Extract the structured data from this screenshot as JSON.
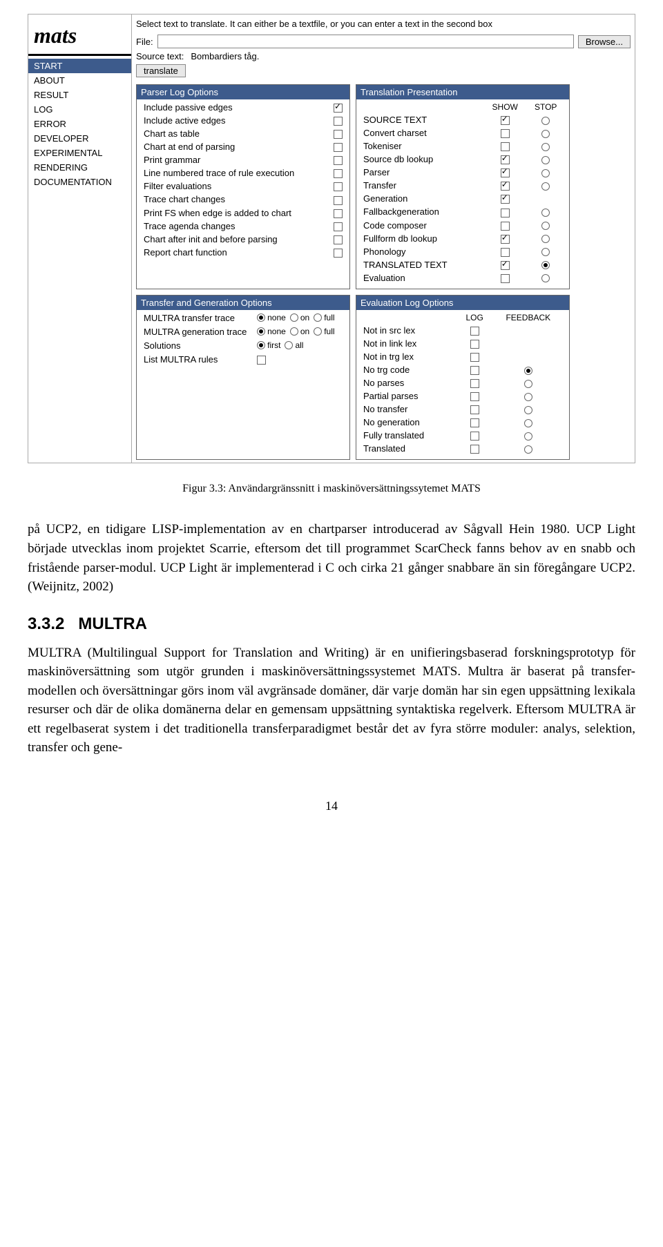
{
  "colors": {
    "header_bg": "#3d5b8c",
    "header_fg": "#ffffff",
    "border": "#666666",
    "page_bg": "#ffffff",
    "text": "#000000"
  },
  "screenshot": {
    "logo": "mats",
    "nav": [
      {
        "label": "START",
        "active": true
      },
      {
        "label": "ABOUT",
        "active": false
      },
      {
        "label": "RESULT",
        "active": false
      },
      {
        "label": "LOG",
        "active": false
      },
      {
        "label": "ERROR",
        "active": false
      },
      {
        "label": "DEVELOPER",
        "active": false
      },
      {
        "label": "EXPERIMENTAL",
        "active": false
      },
      {
        "label": "RENDERING",
        "active": false
      },
      {
        "label": "DOCUMENTATION",
        "active": false
      }
    ],
    "instruction": "Select text to translate. It can either be a textfile, or you can enter a text in the second box",
    "file_label": "File:",
    "file_value": "",
    "browse_label": "Browse...",
    "source_label": "Source text:",
    "source_value": "Bombardiers tåg.",
    "translate_label": "translate",
    "parser_panel": {
      "title": "Parser Log Options",
      "rows": [
        {
          "label": "Include passive edges",
          "checked": true
        },
        {
          "label": "Include active edges",
          "checked": false
        },
        {
          "label": "Chart as table",
          "checked": false
        },
        {
          "label": "Chart at end of parsing",
          "checked": false
        },
        {
          "label": "Print grammar",
          "checked": false
        },
        {
          "label": "Line numbered trace of rule execution",
          "checked": false
        },
        {
          "label": "Filter evaluations",
          "checked": false
        },
        {
          "label": "Trace chart changes",
          "checked": false
        },
        {
          "label": "Print FS when edge is added to chart",
          "checked": false
        },
        {
          "label": "Trace agenda changes",
          "checked": false
        },
        {
          "label": "Chart after init and before parsing",
          "checked": false
        },
        {
          "label": "Report chart function",
          "checked": false
        }
      ]
    },
    "translation_panel": {
      "title": "Translation Presentation",
      "col_show": "SHOW",
      "col_stop": "STOP",
      "rows": [
        {
          "label": "SOURCE TEXT",
          "show": true,
          "stop": false
        },
        {
          "label": "Convert charset",
          "show": false,
          "stop": false
        },
        {
          "label": "Tokeniser",
          "show": false,
          "stop": false
        },
        {
          "label": "Source db lookup",
          "show": true,
          "stop": false
        },
        {
          "label": "Parser",
          "show": true,
          "stop": false
        },
        {
          "label": "Transfer",
          "show": true,
          "stop": false
        },
        {
          "label": "Generation",
          "show": true,
          "stop": null
        },
        {
          "label": "Fallbackgeneration",
          "show": false,
          "stop": false
        },
        {
          "label": "Code composer",
          "show": false,
          "stop": false
        },
        {
          "label": "Fullform db lookup",
          "show": true,
          "stop": false
        },
        {
          "label": "Phonology",
          "show": false,
          "stop": false
        },
        {
          "label": "TRANSLATED TEXT",
          "show": true,
          "stop": true
        },
        {
          "label": "Evaluation",
          "show": false,
          "stop": false
        }
      ]
    },
    "tgo_panel": {
      "title": "Transfer and Generation Options",
      "radio_rows": [
        {
          "label": "MULTRA transfer trace",
          "options": [
            "none",
            "on",
            "full"
          ],
          "selected": "none"
        },
        {
          "label": "MULTRA generation trace",
          "options": [
            "none",
            "on",
            "full"
          ],
          "selected": "none"
        },
        {
          "label": "Solutions",
          "options": [
            "first",
            "all"
          ],
          "selected": "first"
        }
      ],
      "check_rows": [
        {
          "label": "List MULTRA rules",
          "checked": false
        }
      ]
    },
    "eval_panel": {
      "title": "Evaluation Log Options",
      "col_log": "LOG",
      "col_fb": "FEEDBACK",
      "rows": [
        {
          "label": "Not in src lex",
          "log": false,
          "fb": null
        },
        {
          "label": "Not in link lex",
          "log": false,
          "fb": null
        },
        {
          "label": "Not in trg lex",
          "log": false,
          "fb": null
        },
        {
          "label": "No trg code",
          "log": false,
          "fb": true
        },
        {
          "label": "No parses",
          "log": false,
          "fb": false
        },
        {
          "label": "Partial parses",
          "log": false,
          "fb": false
        },
        {
          "label": "No transfer",
          "log": false,
          "fb": false
        },
        {
          "label": "No generation",
          "log": false,
          "fb": false
        },
        {
          "label": "Fully translated",
          "log": false,
          "fb": false
        },
        {
          "label": "Translated",
          "log": false,
          "fb": false
        }
      ]
    }
  },
  "caption": "Figur 3.3: Användargränssnitt i maskinöversättningssytemet MATS",
  "paragraph1": "på UCP2, en tidigare LISP-implementation av en chartparser introducerad av Sågvall Hein 1980. UCP Light började utvecklas inom projektet Scarrie, eftersom det till programmet ScarCheck fanns behov av en snabb och fristående parser-modul. UCP Light är implementerad i C och cirka 21 gånger snabbare än sin föregångare UCP2.(Weijnitz, 2002)",
  "section_number": "3.3.2",
  "section_title": "MULTRA",
  "paragraph2": "MULTRA (Multilingual Support for Translation and Writing) är en unifieringsbaserad forskningsprototyp för maskinöversättning som utgör grunden i maskinöversättningssystemet MATS. Multra är baserat på transfer-modellen och översättningar görs inom väl avgränsade domäner, där varje domän har sin egen uppsättning lexikala resurser och där de olika domänerna delar en gemensam uppsättning syntaktiska regelverk. Eftersom MULTRA är ett regelbaserat system i det traditionella transferparadigmet består det av fyra större moduler: analys, selektion, transfer och gene-",
  "page_number": "14"
}
